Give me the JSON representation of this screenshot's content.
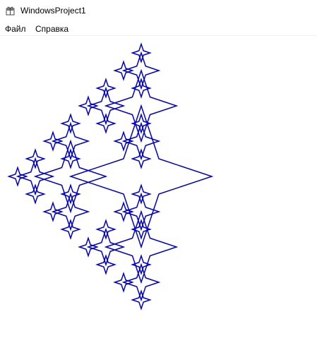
{
  "window": {
    "title": "WindowsProject1"
  },
  "menu": {
    "items": [
      {
        "label": "Файл"
      },
      {
        "label": "Справка"
      }
    ]
  },
  "drawing": {
    "shape": "recursive-four-point-star-fractal",
    "stroke_color": "#0000cc",
    "recursion_levels": 4
  }
}
